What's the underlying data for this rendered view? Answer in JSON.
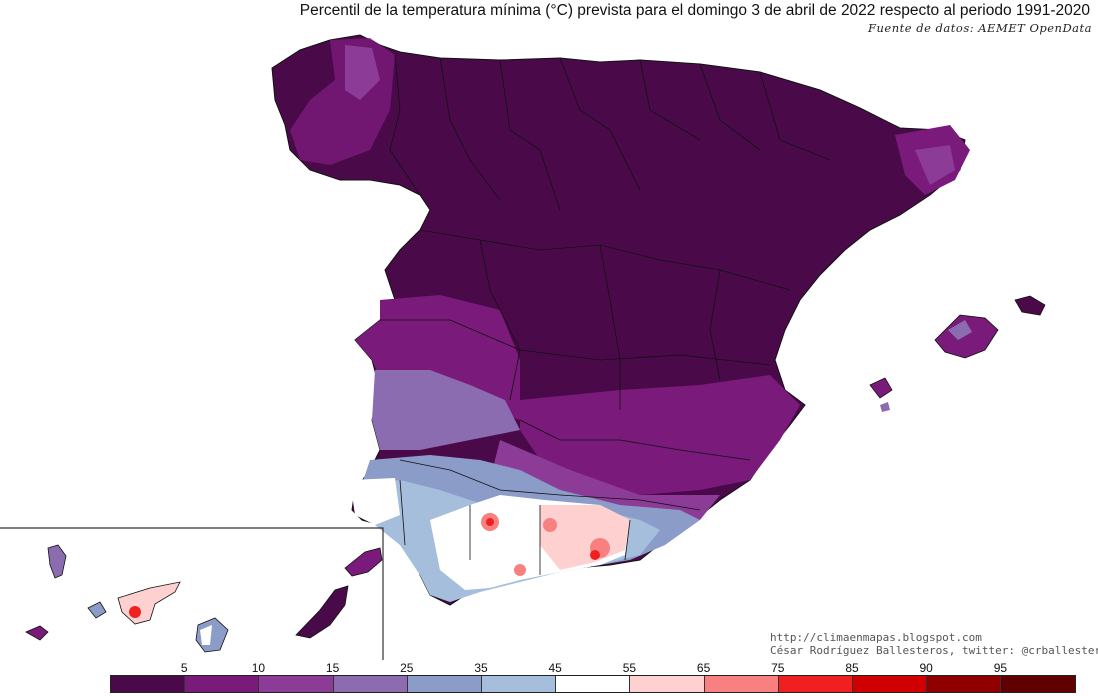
{
  "title": "Percentil de la temperatura mínima (°C) prevista para el domingo 3 de abril de 2022 respecto al periodo 1991-2020",
  "source": "Fuente de datos: AEMET OpenData",
  "credits": {
    "website": "http://climaenmapas.blogspot.com",
    "author": "César Rodríguez Ballesteros, twitter: @crballesteros"
  },
  "legend": {
    "ticks": [
      "5",
      "10",
      "15",
      "25",
      "35",
      "45",
      "55",
      "65",
      "75",
      "85",
      "90",
      "95"
    ],
    "colors": [
      "#4a0a4a",
      "#7a1a7a",
      "#8c3c96",
      "#8c6cb0",
      "#8c9cc8",
      "#a4bedc",
      "#ffffff",
      "#ffd0d0",
      "#f88080",
      "#f02020",
      "#d00000",
      "#900000",
      "#600000"
    ]
  }
}
